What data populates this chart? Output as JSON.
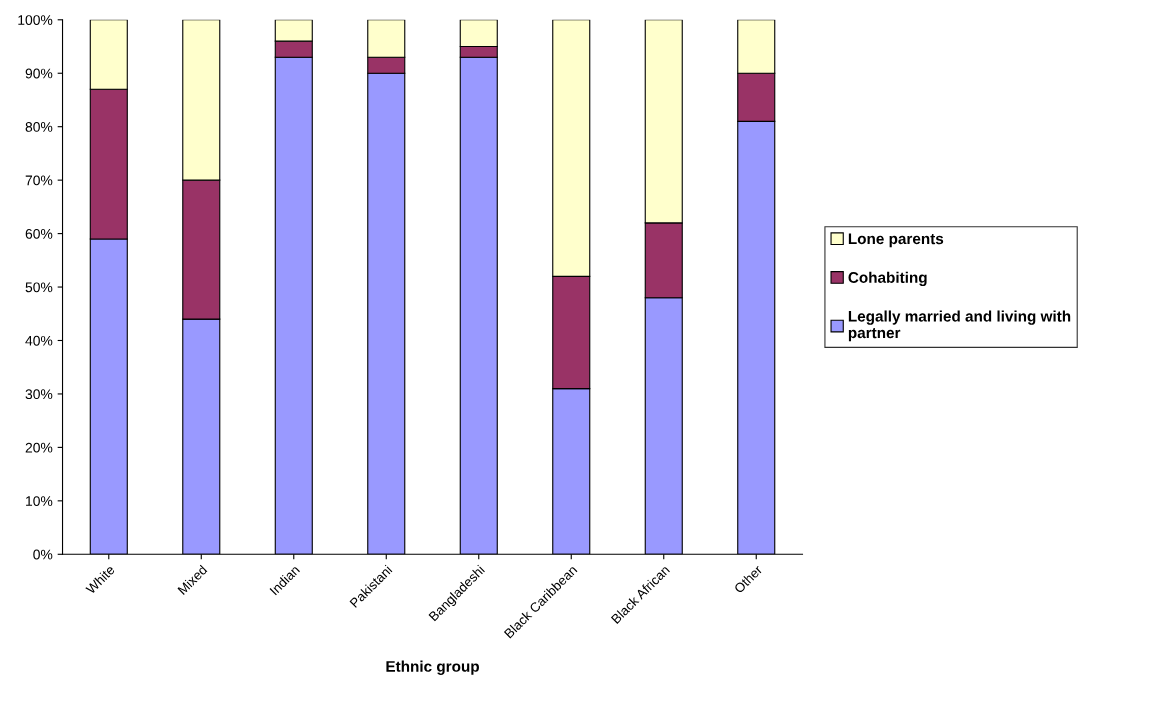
{
  "chart_data": {
    "type": "bar",
    "stacked": true,
    "xlabel": "Ethnic group",
    "categories": [
      "White",
      "Mixed",
      "Indian",
      "Pakistani",
      "Bangladeshi",
      "Black Caribbean",
      "Black African",
      "Other"
    ],
    "series": [
      {
        "name": "Legally married and living with partner",
        "color": "#9999ff",
        "values": [
          59,
          44,
          93,
          90,
          93,
          31,
          48,
          81
        ]
      },
      {
        "name": "Cohabiting",
        "color": "#993366",
        "values": [
          28,
          26,
          3,
          3,
          2,
          21,
          14,
          9
        ]
      },
      {
        "name": "Lone parents",
        "color": "#ffffcc",
        "values": [
          13,
          30,
          4,
          7,
          5,
          48,
          38,
          10
        ]
      }
    ],
    "ylim": [
      0,
      100
    ],
    "yticks": [
      {
        "value": 0,
        "label": "0%"
      },
      {
        "value": 10,
        "label": "10%"
      },
      {
        "value": 20,
        "label": "20%"
      },
      {
        "value": 30,
        "label": "30%"
      },
      {
        "value": 40,
        "label": "40%"
      },
      {
        "value": 50,
        "label": "50%"
      },
      {
        "value": 60,
        "label": "60%"
      },
      {
        "value": 70,
        "label": "70%"
      },
      {
        "value": 80,
        "label": "80%"
      },
      {
        "value": 90,
        "label": "90%"
      },
      {
        "value": 100,
        "label": "100%"
      }
    ],
    "grid": false,
    "legend": "right"
  }
}
